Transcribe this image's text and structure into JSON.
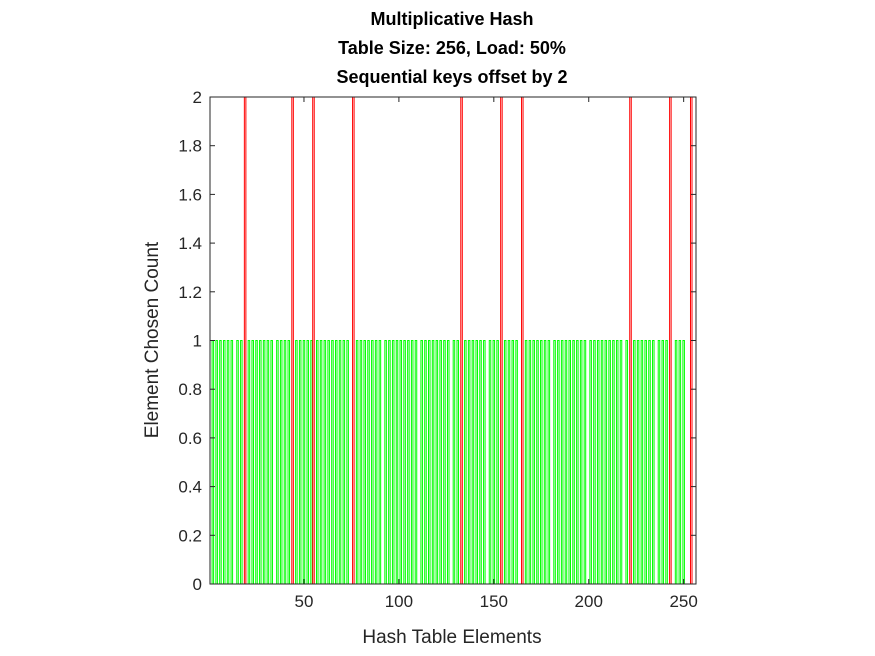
{
  "chart_data": {
    "type": "bar",
    "title": [
      "Multiplicative Hash",
      "Table Size: 256, Load: 50%",
      "Sequential keys offset by 2"
    ],
    "xlabel": "Hash Table Elements",
    "ylabel": "Element Chosen Count",
    "xlim": [
      1,
      256
    ],
    "ylim": [
      0,
      2
    ],
    "xticks": [
      50,
      100,
      150,
      200,
      250
    ],
    "yticks": [
      0,
      0.2,
      0.4,
      0.6,
      0.8,
      1,
      1.2,
      1.4,
      1.6,
      1.8,
      2
    ],
    "grid": false,
    "series": [
      {
        "values_count": 1,
        "color": "#00ff00",
        "x": [
          2,
          4,
          6,
          8,
          10,
          12,
          15,
          17,
          21,
          23,
          25,
          27,
          29,
          31,
          33,
          36,
          38,
          40,
          42,
          46,
          48,
          50,
          52,
          54,
          57,
          59,
          61,
          63,
          65,
          67,
          69,
          71,
          73,
          78,
          80,
          82,
          84,
          86,
          88,
          90,
          93,
          95,
          97,
          99,
          101,
          103,
          105,
          107,
          109,
          112,
          114,
          116,
          118,
          120,
          122,
          124,
          126,
          129,
          131,
          135,
          137,
          139,
          141,
          143,
          145,
          148,
          150,
          152,
          156,
          158,
          160,
          162,
          167,
          169,
          171,
          173,
          175,
          177,
          179,
          182,
          184,
          186,
          188,
          190,
          192,
          194,
          196,
          198,
          201,
          203,
          205,
          207,
          209,
          211,
          213,
          215,
          217,
          220,
          224,
          226,
          228,
          230,
          232,
          234,
          237,
          239,
          241,
          246,
          248,
          250
        ]
      },
      {
        "values_count": 2,
        "color": "#ff0000",
        "x": [
          19,
          44,
          55,
          76,
          133,
          154,
          165,
          222,
          243,
          254
        ]
      }
    ]
  }
}
